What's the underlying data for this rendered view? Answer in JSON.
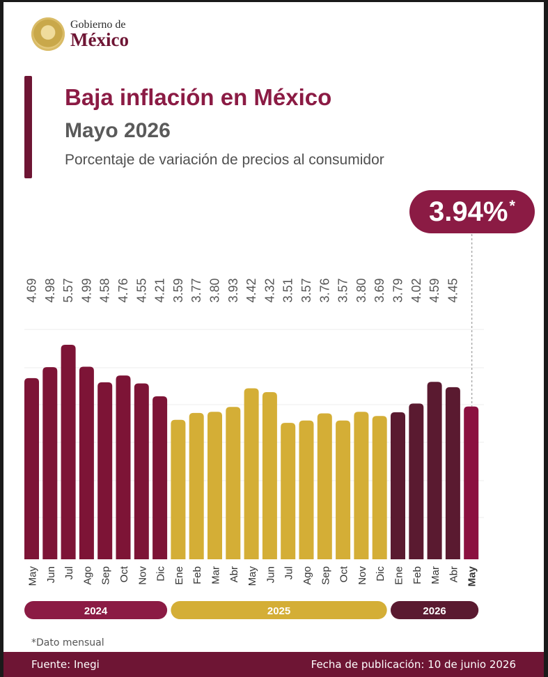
{
  "header": {
    "logo_top": "Gobierno de",
    "logo_bottom": "México",
    "title": "Baja inflación en México",
    "subtitle": "Mayo 2026",
    "description": "Porcentaje de variación de precios al consumidor"
  },
  "callout": {
    "value": "3.94%",
    "marker": "*"
  },
  "chart_data": {
    "type": "bar",
    "categories": [
      "May",
      "Jun",
      "Jul",
      "Ago",
      "Sep",
      "Oct",
      "Nov",
      "Dic",
      "Ene",
      "Feb",
      "Mar",
      "Abr",
      "May",
      "Jun",
      "Jul",
      "Ago",
      "Sep",
      "Oct",
      "Nov",
      "Dic",
      "Ene",
      "Feb",
      "Mar",
      "Abr",
      "May"
    ],
    "values": [
      4.69,
      4.98,
      5.57,
      4.99,
      4.58,
      4.76,
      4.55,
      4.21,
      3.59,
      3.77,
      3.8,
      3.93,
      4.42,
      4.32,
      3.51,
      3.57,
      3.76,
      3.57,
      3.8,
      3.69,
      3.79,
      4.02,
      4.59,
      4.45,
      3.94
    ],
    "value_labels": [
      "4.69",
      "4.98",
      "5.57",
      "4.99",
      "4.58",
      "4.76",
      "4.55",
      "4.21",
      "3.59",
      "3.77",
      "3.80",
      "3.93",
      "4.42",
      "4.32",
      "3.51",
      "3.57",
      "3.76",
      "3.57",
      "3.80",
      "3.69",
      "3.79",
      "4.02",
      "4.59",
      "4.45",
      ""
    ],
    "year_groups": [
      {
        "label": "2024",
        "start": 0,
        "end": 7,
        "color": "#8b1b44"
      },
      {
        "label": "2025",
        "start": 8,
        "end": 19,
        "color": "#d4ae36"
      },
      {
        "label": "2026",
        "start": 20,
        "end": 24,
        "color": "#5a1a30"
      }
    ],
    "colors": {
      "y2024": "#7d1436",
      "y2025": "#d4ae36",
      "y2026": "#5a1a30",
      "current": "#8b1040"
    },
    "ylim": [
      0,
      6
    ],
    "grid": true
  },
  "footnote": "*Dato mensual",
  "footer": {
    "source": "Fuente: Inegi",
    "published": "Fecha de publicación: 10 de junio 2026"
  }
}
